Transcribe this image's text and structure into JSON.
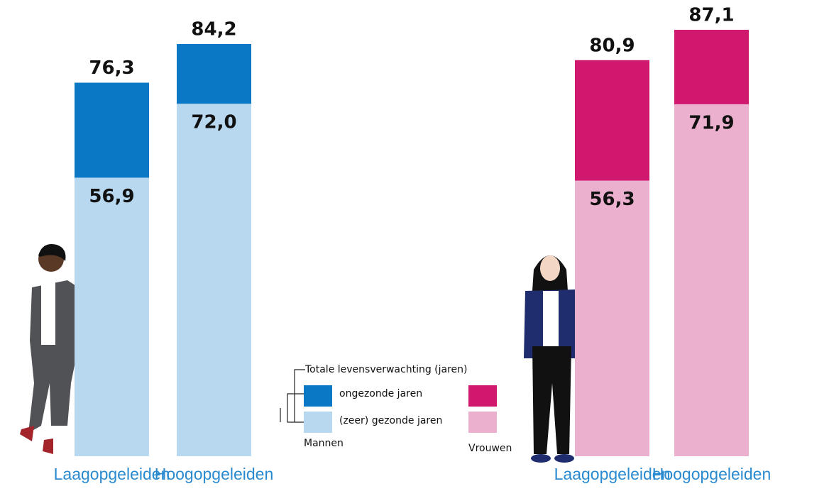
{
  "chart_data": {
    "type": "bar",
    "legend": {
      "title": "Totale levensverwachting (jaren)",
      "unhealthy": "ongezonde jaren",
      "healthy": "(zeer) gezonde jaren"
    },
    "groups": [
      {
        "name": "Mannen",
        "categories": [
          "Laagopgeleiden",
          "Hoogopgeleiden"
        ],
        "total": {
          "values": [
            76.3,
            84.2
          ],
          "value_labels": [
            "76,3",
            "84,2"
          ],
          "color": "#0a78c4"
        },
        "healthy": {
          "values": [
            56.9,
            72.0
          ],
          "value_labels": [
            "56,9",
            "72,0"
          ],
          "color": "#b7d8ef"
        }
      },
      {
        "name": "Vrouwen",
        "categories": [
          "Laagopgeleiden",
          "Hoogopgeleiden"
        ],
        "total": {
          "values": [
            80.9,
            87.1
          ],
          "value_labels": [
            "80,9",
            "87,1"
          ],
          "color": "#d0186f"
        },
        "healthy": {
          "values": [
            56.3,
            71.9
          ],
          "value_labels": [
            "56,3",
            "71,9"
          ],
          "color": "#ecb0cf"
        }
      }
    ]
  }
}
